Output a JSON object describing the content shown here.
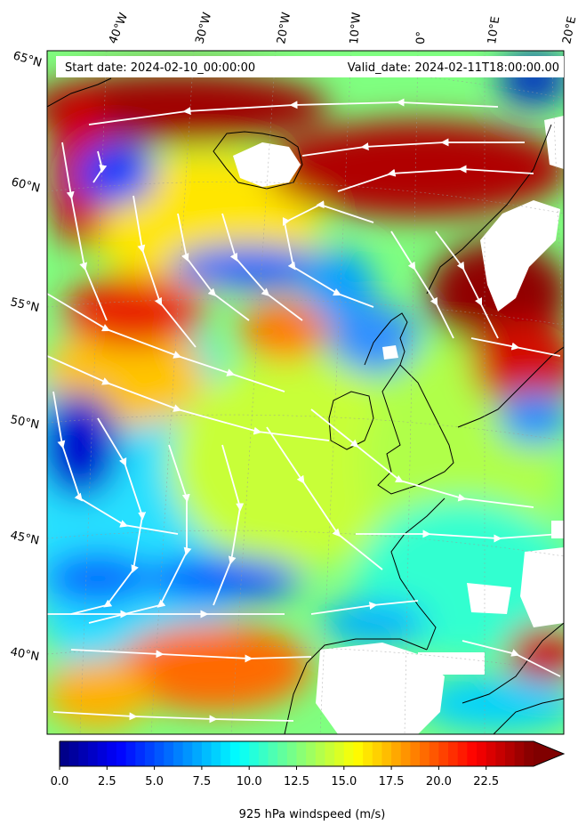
{
  "header": {
    "start_date": "Start date: 2024-02-10_00:00:00",
    "valid_date": "Valid_date: 2024-02-11T18:00:00.00"
  },
  "longitudes": [
    {
      "label": "40°W",
      "value": -40
    },
    {
      "label": "30°W",
      "value": -30
    },
    {
      "label": "20°W",
      "value": -20
    },
    {
      "label": "10°W",
      "value": -10
    },
    {
      "label": "0°",
      "value": 0
    },
    {
      "label": "10°E",
      "value": 10
    },
    {
      "label": "20°E",
      "value": 20
    }
  ],
  "latitudes": [
    {
      "label": "65°N",
      "value": 65
    },
    {
      "label": "60°N",
      "value": 60
    },
    {
      "label": "55°N",
      "value": 55
    },
    {
      "label": "50°N",
      "value": 50
    },
    {
      "label": "45°N",
      "value": 45
    },
    {
      "label": "40°N",
      "value": 40
    }
  ],
  "colorbar": {
    "label": "925 hPa windspeed (m/s)",
    "min": 0,
    "max": 25,
    "extend": "max",
    "colormap": "jet",
    "ticks": [
      "0.0",
      "2.5",
      "5.0",
      "7.5",
      "10.0",
      "12.5",
      "15.0",
      "17.5",
      "20.0",
      "22.5"
    ],
    "tick_values": [
      0,
      2.5,
      5,
      7.5,
      10,
      12.5,
      15,
      17.5,
      20,
      22.5
    ]
  },
  "colors": {
    "streamline": "#ffffff",
    "coastline": "#000000",
    "missing": "#ffffff"
  }
}
